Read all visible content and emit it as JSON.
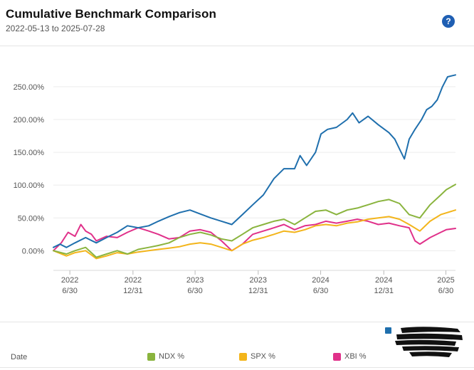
{
  "header": {
    "title": "Cumulative Benchmark Comparison",
    "date_range": "2022-05-13 to 2025-07-28",
    "help_glyph": "?"
  },
  "legend": {
    "date_label": "Date",
    "items": [
      {
        "label": "NDX %",
        "color": "#8ab43e"
      },
      {
        "label": "SPX %",
        "color": "#f3b51b"
      },
      {
        "label": "XBI %",
        "color": "#e0318a"
      }
    ],
    "portfolio_color": "#1f6fad"
  },
  "chart_data": {
    "type": "line",
    "ylim": [
      -30,
      290
    ],
    "yticks": [
      0,
      50,
      100,
      150,
      200,
      250
    ],
    "ytick_labels": [
      "0.00%",
      "50.00%",
      "100.00%",
      "150.00%",
      "200.00%",
      "250.00%"
    ],
    "xlim": [
      "2022-05-13",
      "2025-07-28"
    ],
    "xticks": [
      {
        "date": "2022-06-30",
        "year": "2022",
        "md": "6/30"
      },
      {
        "date": "2022-12-31",
        "year": "2022",
        "md": "12/31"
      },
      {
        "date": "2023-06-30",
        "year": "2023",
        "md": "6/30"
      },
      {
        "date": "2023-12-31",
        "year": "2023",
        "md": "12/31"
      },
      {
        "date": "2024-06-30",
        "year": "2024",
        "md": "6/30"
      },
      {
        "date": "2024-12-31",
        "year": "2024",
        "md": "12/31"
      },
      {
        "date": "2025-06-30",
        "year": "2025",
        "md": "6/30"
      }
    ],
    "grid": true,
    "series": [
      {
        "color": "#1f6fad",
        "points": [
          [
            "2022-05-13",
            5
          ],
          [
            "2022-06-01",
            10
          ],
          [
            "2022-06-20",
            5
          ],
          [
            "2022-07-15",
            12
          ],
          [
            "2022-08-15",
            20
          ],
          [
            "2022-09-15",
            12
          ],
          [
            "2022-10-15",
            20
          ],
          [
            "2022-11-15",
            28
          ],
          [
            "2022-12-15",
            38
          ],
          [
            "2023-01-15",
            35
          ],
          [
            "2023-02-15",
            38
          ],
          [
            "2023-03-15",
            45
          ],
          [
            "2023-04-15",
            52
          ],
          [
            "2023-05-15",
            58
          ],
          [
            "2023-06-15",
            62
          ],
          [
            "2023-07-15",
            56
          ],
          [
            "2023-08-15",
            50
          ],
          [
            "2023-09-15",
            45
          ],
          [
            "2023-10-15",
            40
          ],
          [
            "2023-11-15",
            55
          ],
          [
            "2023-12-15",
            70
          ],
          [
            "2024-01-15",
            85
          ],
          [
            "2024-02-15",
            110
          ],
          [
            "2024-03-15",
            125
          ],
          [
            "2024-04-15",
            125
          ],
          [
            "2024-05-01",
            145
          ],
          [
            "2024-05-20",
            130
          ],
          [
            "2024-06-15",
            150
          ],
          [
            "2024-07-01",
            178
          ],
          [
            "2024-07-20",
            185
          ],
          [
            "2024-08-15",
            188
          ],
          [
            "2024-09-15",
            200
          ],
          [
            "2024-10-01",
            210
          ],
          [
            "2024-10-20",
            195
          ],
          [
            "2024-11-15",
            205
          ],
          [
            "2024-12-15",
            192
          ],
          [
            "2025-01-15",
            180
          ],
          [
            "2025-02-01",
            170
          ],
          [
            "2025-02-15",
            155
          ],
          [
            "2025-03-01",
            140
          ],
          [
            "2025-03-15",
            170
          ],
          [
            "2025-04-01",
            185
          ],
          [
            "2025-04-20",
            200
          ],
          [
            "2025-05-05",
            215
          ],
          [
            "2025-05-20",
            220
          ],
          [
            "2025-06-05",
            230
          ],
          [
            "2025-06-20",
            250
          ],
          [
            "2025-07-05",
            265
          ],
          [
            "2025-07-28",
            268
          ]
        ]
      },
      {
        "label": "NDX %",
        "color": "#8ab43e",
        "points": [
          [
            "2022-05-13",
            0
          ],
          [
            "2022-06-20",
            -5
          ],
          [
            "2022-07-15",
            0
          ],
          [
            "2022-08-15",
            5
          ],
          [
            "2022-09-15",
            -10
          ],
          [
            "2022-10-15",
            -5
          ],
          [
            "2022-11-15",
            0
          ],
          [
            "2022-12-15",
            -5
          ],
          [
            "2023-01-15",
            2
          ],
          [
            "2023-02-15",
            5
          ],
          [
            "2023-03-15",
            8
          ],
          [
            "2023-04-15",
            12
          ],
          [
            "2023-05-15",
            20
          ],
          [
            "2023-06-15",
            25
          ],
          [
            "2023-07-15",
            28
          ],
          [
            "2023-08-15",
            24
          ],
          [
            "2023-09-15",
            18
          ],
          [
            "2023-10-15",
            15
          ],
          [
            "2023-11-15",
            25
          ],
          [
            "2023-12-15",
            35
          ],
          [
            "2024-01-15",
            40
          ],
          [
            "2024-02-15",
            45
          ],
          [
            "2024-03-15",
            48
          ],
          [
            "2024-04-15",
            40
          ],
          [
            "2024-05-15",
            50
          ],
          [
            "2024-06-15",
            60
          ],
          [
            "2024-07-15",
            62
          ],
          [
            "2024-08-15",
            55
          ],
          [
            "2024-09-15",
            62
          ],
          [
            "2024-10-15",
            65
          ],
          [
            "2024-11-15",
            70
          ],
          [
            "2024-12-15",
            75
          ],
          [
            "2025-01-15",
            78
          ],
          [
            "2025-02-15",
            72
          ],
          [
            "2025-03-15",
            55
          ],
          [
            "2025-04-15",
            50
          ],
          [
            "2025-05-15",
            70
          ],
          [
            "2025-06-15",
            85
          ],
          [
            "2025-07-01",
            93
          ],
          [
            "2025-07-28",
            101
          ]
        ]
      },
      {
        "label": "SPX %",
        "color": "#f3b51b",
        "points": [
          [
            "2022-05-13",
            0
          ],
          [
            "2022-06-20",
            -8
          ],
          [
            "2022-07-15",
            -3
          ],
          [
            "2022-08-15",
            0
          ],
          [
            "2022-09-15",
            -12
          ],
          [
            "2022-10-15",
            -8
          ],
          [
            "2022-11-15",
            -3
          ],
          [
            "2022-12-15",
            -5
          ],
          [
            "2023-01-15",
            -2
          ],
          [
            "2023-02-15",
            0
          ],
          [
            "2023-03-15",
            2
          ],
          [
            "2023-04-15",
            4
          ],
          [
            "2023-05-15",
            6
          ],
          [
            "2023-06-15",
            10
          ],
          [
            "2023-07-15",
            12
          ],
          [
            "2023-08-15",
            10
          ],
          [
            "2023-09-15",
            5
          ],
          [
            "2023-10-15",
            0
          ],
          [
            "2023-11-15",
            10
          ],
          [
            "2023-12-15",
            16
          ],
          [
            "2024-01-15",
            20
          ],
          [
            "2024-02-15",
            25
          ],
          [
            "2024-03-15",
            30
          ],
          [
            "2024-04-15",
            28
          ],
          [
            "2024-05-15",
            32
          ],
          [
            "2024-06-15",
            38
          ],
          [
            "2024-07-15",
            40
          ],
          [
            "2024-08-15",
            38
          ],
          [
            "2024-09-15",
            42
          ],
          [
            "2024-10-15",
            44
          ],
          [
            "2024-11-15",
            48
          ],
          [
            "2024-12-15",
            50
          ],
          [
            "2025-01-15",
            52
          ],
          [
            "2025-02-15",
            48
          ],
          [
            "2025-03-15",
            40
          ],
          [
            "2025-04-15",
            30
          ],
          [
            "2025-05-15",
            45
          ],
          [
            "2025-06-15",
            55
          ],
          [
            "2025-07-28",
            62
          ]
        ]
      },
      {
        "label": "XBI %",
        "color": "#e0318a",
        "points": [
          [
            "2022-05-13",
            0
          ],
          [
            "2022-06-05",
            12
          ],
          [
            "2022-06-25",
            28
          ],
          [
            "2022-07-15",
            22
          ],
          [
            "2022-08-01",
            40
          ],
          [
            "2022-08-15",
            30
          ],
          [
            "2022-09-01",
            25
          ],
          [
            "2022-09-15",
            15
          ],
          [
            "2022-10-15",
            22
          ],
          [
            "2022-11-15",
            20
          ],
          [
            "2022-12-15",
            28
          ],
          [
            "2023-01-15",
            35
          ],
          [
            "2023-02-15",
            30
          ],
          [
            "2023-03-15",
            25
          ],
          [
            "2023-04-15",
            18
          ],
          [
            "2023-05-15",
            20
          ],
          [
            "2023-06-15",
            30
          ],
          [
            "2023-07-15",
            32
          ],
          [
            "2023-08-15",
            28
          ],
          [
            "2023-09-15",
            15
          ],
          [
            "2023-10-15",
            0
          ],
          [
            "2023-11-15",
            10
          ],
          [
            "2023-12-15",
            25
          ],
          [
            "2024-01-15",
            30
          ],
          [
            "2024-02-15",
            35
          ],
          [
            "2024-03-15",
            40
          ],
          [
            "2024-04-15",
            32
          ],
          [
            "2024-05-15",
            38
          ],
          [
            "2024-06-15",
            40
          ],
          [
            "2024-07-15",
            45
          ],
          [
            "2024-08-15",
            42
          ],
          [
            "2024-09-15",
            45
          ],
          [
            "2024-10-15",
            48
          ],
          [
            "2024-11-15",
            45
          ],
          [
            "2024-12-15",
            40
          ],
          [
            "2025-01-15",
            42
          ],
          [
            "2025-02-15",
            38
          ],
          [
            "2025-03-15",
            35
          ],
          [
            "2025-04-01",
            15
          ],
          [
            "2025-04-15",
            10
          ],
          [
            "2025-05-15",
            20
          ],
          [
            "2025-06-15",
            28
          ],
          [
            "2025-07-01",
            32
          ],
          [
            "2025-07-28",
            34
          ]
        ]
      }
    ]
  }
}
